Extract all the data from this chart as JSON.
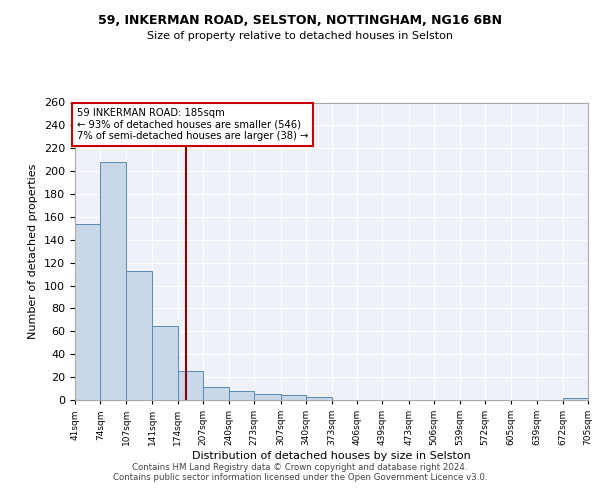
{
  "title1": "59, INKERMAN ROAD, SELSTON, NOTTINGHAM, NG16 6BN",
  "title2": "Size of property relative to detached houses in Selston",
  "xlabel": "Distribution of detached houses by size in Selston",
  "ylabel": "Number of detached properties",
  "bar_edges": [
    41,
    74,
    107,
    141,
    174,
    207,
    240,
    273,
    307,
    340,
    373,
    406,
    439,
    473,
    506,
    539,
    572,
    605,
    639,
    672,
    705
  ],
  "bar_heights": [
    154,
    208,
    113,
    65,
    25,
    11,
    8,
    5,
    4,
    3,
    0,
    0,
    0,
    0,
    0,
    0,
    0,
    0,
    0,
    2
  ],
  "bar_color": "#c8d8e8",
  "bar_edge_color": "#5a8ab0",
  "vline_x": 185,
  "vline_color": "#8b0000",
  "annotation_text": "59 INKERMAN ROAD: 185sqm\n← 93% of detached houses are smaller (546)\n7% of semi-detached houses are larger (38) →",
  "annotation_box_color": "white",
  "annotation_box_edge_color": "#cc0000",
  "ylim": [
    0,
    260
  ],
  "yticks": [
    0,
    20,
    40,
    60,
    80,
    100,
    120,
    140,
    160,
    180,
    200,
    220,
    240,
    260
  ],
  "tick_labels": [
    "41sqm",
    "74sqm",
    "107sqm",
    "141sqm",
    "174sqm",
    "207sqm",
    "240sqm",
    "273sqm",
    "307sqm",
    "340sqm",
    "373sqm",
    "406sqm",
    "439sqm",
    "473sqm",
    "506sqm",
    "539sqm",
    "572sqm",
    "605sqm",
    "639sqm",
    "672sqm",
    "705sqm"
  ],
  "background_color": "#eef2f8",
  "grid_color": "#ffffff",
  "footer_text": "Contains HM Land Registry data © Crown copyright and database right 2024.\nContains public sector information licensed under the Open Government Licence v3.0."
}
